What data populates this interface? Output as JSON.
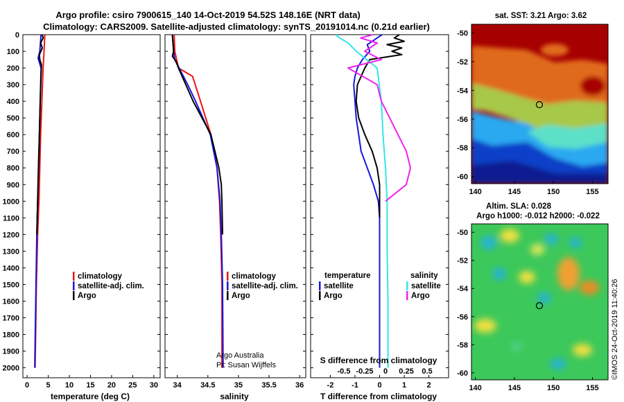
{
  "title_line1": "Argo profile: csiro 7900615_140 14-Oct-2019 54.52S 148.16E (NRT data)",
  "title_line2": "Climatology: CARS2009. Satellite-adjusted climatology: synTS_20191014.nc (0.21d earlier)",
  "colors": {
    "climatology": "#ee1111",
    "satellite": "#1515dd",
    "argo": "#000000",
    "sat_salinity": "#33e6e6",
    "argo_salinity": "#ee22ee"
  },
  "legends": {
    "temp": {
      "clim": "climatology",
      "sat": "satellite-adj. clim.",
      "argo": "Argo"
    },
    "sal": {
      "clim": "climatology",
      "sat": "satellite-adj. clim.",
      "argo": "Argo"
    },
    "diff": {
      "temp_head": "temperature",
      "sal_head": "salinity",
      "temp_sat": "satellite",
      "temp_argo": "Argo",
      "sal_sat": "satellite",
      "sal_argo": "Argo"
    }
  },
  "credits": {
    "line1": "Argo Australia",
    "line2": "PI: Susan Wijffels"
  },
  "map_sst": {
    "title": "sat. SST: 3.21 Argo: 3.62",
    "float_lon": 148.16,
    "float_lat": -54.52,
    "xticks": [
      "140",
      "145",
      "150",
      "155"
    ],
    "yticks": [
      "-50",
      "-52",
      "-54",
      "-56",
      "-58",
      "-60"
    ]
  },
  "map_sla": {
    "title1": "Altim. SLA: 0.028",
    "title2": "Argo h1000: -0.012 h2000: -0.022",
    "float_lon": 148.16,
    "float_lat": -54.52,
    "xticks": [
      "140",
      "145",
      "150",
      "155"
    ],
    "yticks": [
      "-50",
      "-52",
      "-54",
      "-56",
      "-58",
      "-60"
    ]
  },
  "watermark": "©IMOS 24-Oct-2019 11:40:26",
  "chart_data": [
    {
      "type": "line",
      "xlabel": "temperature (deg C)",
      "xlim": [
        -1,
        31.5
      ],
      "ylim": [
        2060,
        0
      ],
      "xticks": [
        0,
        5,
        10,
        15,
        20,
        25,
        30
      ],
      "yticks": [
        0,
        100,
        200,
        300,
        400,
        500,
        600,
        700,
        800,
        900,
        1000,
        1100,
        1200,
        1300,
        1400,
        1500,
        1600,
        1700,
        1800,
        1900,
        2000
      ],
      "series": [
        {
          "name": "climatology",
          "y": [
            0,
            100,
            200,
            400,
            600,
            800,
            1000,
            1200,
            1500,
            2000
          ],
          "x": [
            4.2,
            4.0,
            3.8,
            3.5,
            3.2,
            3.0,
            2.8,
            2.5,
            2.2,
            1.9
          ]
        },
        {
          "name": "satellite-adj. clim.",
          "y": [
            0,
            100,
            140,
            200,
            400,
            600,
            800,
            1000,
            1200,
            1500,
            2000
          ],
          "x": [
            3.3,
            3.0,
            2.6,
            3.3,
            3.1,
            2.9,
            2.7,
            2.5,
            2.3,
            2.1,
            1.8
          ]
        },
        {
          "name": "Argo",
          "y": [
            0,
            20,
            50,
            80,
            120,
            150,
            180,
            250,
            400,
            600,
            800,
            1000,
            1200
          ],
          "x": [
            3.6,
            3.8,
            3.2,
            3.6,
            2.9,
            3.0,
            3.4,
            3.3,
            3.1,
            2.9,
            2.7,
            2.5,
            2.3
          ]
        }
      ]
    },
    {
      "type": "line",
      "xlabel": "salinity",
      "xlim": [
        33.8,
        36.1
      ],
      "ylim": [
        2060,
        0
      ],
      "xticks": [
        34,
        34.5,
        35,
        35.5,
        36
      ],
      "series": [
        {
          "name": "climatology",
          "y": [
            0,
            100,
            200,
            250,
            400,
            600,
            800,
            1000,
            1200,
            1500,
            2000
          ],
          "x": [
            33.95,
            33.96,
            34.02,
            34.25,
            34.38,
            34.55,
            34.65,
            34.69,
            34.71,
            34.73,
            34.73
          ]
        },
        {
          "name": "satellite-adj. clim.",
          "y": [
            0,
            50,
            100,
            150,
            200,
            300,
            400,
            600,
            800,
            1000,
            1200,
            1500,
            2000
          ],
          "x": [
            33.92,
            33.93,
            33.94,
            33.96,
            34.03,
            34.17,
            34.3,
            34.54,
            34.65,
            34.7,
            34.72,
            34.74,
            34.75
          ]
        },
        {
          "name": "Argo",
          "y": [
            0,
            50,
            100,
            130,
            160,
            200,
            300,
            400,
            600,
            800,
            900,
            1000,
            1200
          ],
          "x": [
            33.92,
            33.93,
            33.94,
            33.92,
            33.98,
            34.02,
            34.14,
            34.26,
            34.55,
            34.68,
            34.72,
            34.73,
            34.74
          ]
        }
      ]
    },
    {
      "type": "line",
      "xlabel": "T difference from climatology",
      "xlabel_top": "S difference from climatology",
      "xlim": [
        -2.8,
        2.8
      ],
      "ylim": [
        2060,
        0
      ],
      "xticks": [
        -2,
        -1,
        0,
        1,
        2
      ],
      "xticks_sal": [
        "-0.5",
        "-0.25",
        "0",
        "0.25",
        "0.5"
      ],
      "series": [
        {
          "name": "temperature satellite",
          "y": [
            0,
            20,
            60,
            100,
            150,
            200,
            250,
            300,
            400,
            500,
            600,
            700,
            800,
            900,
            1000,
            1100,
            1300,
            2000
          ],
          "x": [
            0.1,
            -0.1,
            -0.5,
            -0.4,
            -0.7,
            -0.9,
            -1.0,
            -1.05,
            -1.0,
            -0.95,
            -0.85,
            -0.75,
            -0.5,
            -0.25,
            -0.05,
            0.0,
            0.0,
            0.0
          ]
        },
        {
          "name": "temperature Argo",
          "y": [
            0,
            20,
            40,
            60,
            80,
            100,
            120,
            150,
            200,
            300,
            400,
            500,
            600,
            700,
            800,
            900,
            1000,
            1100
          ],
          "x": [
            0.8,
            0.6,
            1.0,
            0.3,
            0.9,
            0.5,
            0.9,
            -0.4,
            -0.6,
            -0.9,
            -0.95,
            -0.85,
            -0.6,
            -0.3,
            -0.1,
            0.0,
            0.0,
            0.0
          ]
        },
        {
          "name": "salinity satellite",
          "y": [
            0,
            20,
            50,
            100,
            200,
            400,
            600,
            800,
            1000,
            1300,
            1600,
            2000
          ],
          "x": [
            -0.6,
            -0.55,
            -0.45,
            -0.35,
            -0.1,
            -0.05,
            -0.03,
            0.0,
            0.02,
            0.02,
            0.03,
            0.03
          ]
        },
        {
          "name": "salinity Argo",
          "y": [
            0,
            20,
            50,
            100,
            150,
            200,
            300,
            400,
            500,
            600,
            700,
            800,
            900,
            1000
          ],
          "x": [
            -0.15,
            -0.3,
            -0.1,
            -0.25,
            -0.05,
            -0.45,
            -0.1,
            -0.05,
            0.05,
            0.15,
            0.25,
            0.3,
            0.25,
            0.0
          ]
        }
      ]
    }
  ]
}
